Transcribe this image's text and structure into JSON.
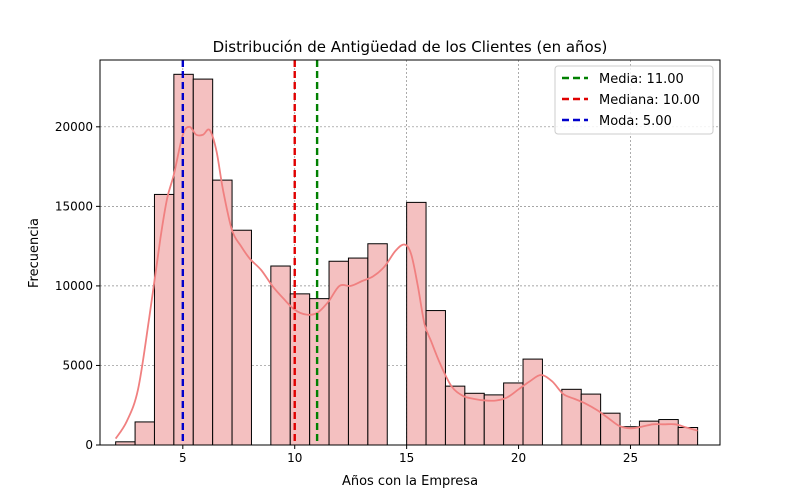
{
  "chart_data": {
    "type": "histogram",
    "title": "Distribución de Antigüedad de los Clientes (en años)",
    "xlabel": "Años con la Empresa",
    "ylabel": "Frecuencia",
    "xlim": [
      1.3,
      29.0
    ],
    "ylim": [
      0,
      24200
    ],
    "xticks": [
      5,
      10,
      15,
      20,
      25
    ],
    "yticks": [
      0,
      5000,
      10000,
      15000,
      20000
    ],
    "grid": true,
    "bin_width": 0.867,
    "bins": [
      {
        "x0": 2.0,
        "value": 200
      },
      {
        "x0": 2.867,
        "value": 1450
      },
      {
        "x0": 3.733,
        "value": 15750
      },
      {
        "x0": 4.6,
        "value": 23300
      },
      {
        "x0": 5.467,
        "value": 23000
      },
      {
        "x0": 6.333,
        "value": 16650
      },
      {
        "x0": 7.2,
        "value": 13500
      },
      {
        "x0": 8.067,
        "value": 0
      },
      {
        "x0": 8.933,
        "value": 11250
      },
      {
        "x0": 9.8,
        "value": 9500
      },
      {
        "x0": 10.667,
        "value": 9200
      },
      {
        "x0": 11.533,
        "value": 11550
      },
      {
        "x0": 12.4,
        "value": 11750
      },
      {
        "x0": 13.267,
        "value": 12650
      },
      {
        "x0": 14.133,
        "value": 0
      },
      {
        "x0": 15.0,
        "value": 15250
      },
      {
        "x0": 15.867,
        "value": 8450
      },
      {
        "x0": 16.733,
        "value": 3700
      },
      {
        "x0": 17.6,
        "value": 3250
      },
      {
        "x0": 18.467,
        "value": 3150
      },
      {
        "x0": 19.333,
        "value": 3900
      },
      {
        "x0": 20.2,
        "value": 5400
      },
      {
        "x0": 21.067,
        "value": 0
      },
      {
        "x0": 21.933,
        "value": 3500
      },
      {
        "x0": 22.8,
        "value": 3200
      },
      {
        "x0": 23.667,
        "value": 2000
      },
      {
        "x0": 24.533,
        "value": 1150
      },
      {
        "x0": 25.4,
        "value": 1500
      },
      {
        "x0": 26.267,
        "value": 1600
      },
      {
        "x0": 27.133,
        "value": 1100
      }
    ],
    "kde": {
      "x": [
        2.0,
        2.5,
        3.0,
        3.5,
        4.0,
        4.3,
        4.6,
        5.0,
        5.3,
        5.6,
        5.9,
        6.2,
        6.5,
        6.8,
        7.2,
        7.6,
        8.0,
        8.5,
        9.0,
        9.5,
        10.0,
        10.5,
        11.0,
        11.5,
        12.0,
        12.5,
        13.0,
        13.5,
        14.0,
        14.5,
        14.9,
        15.2,
        15.5,
        15.8,
        16.1,
        16.5,
        17.0,
        17.5,
        18.0,
        18.5,
        19.0,
        19.5,
        20.0,
        20.5,
        21.0,
        21.5,
        22.0,
        22.5,
        23.0,
        23.5,
        24.0,
        24.5,
        25.0,
        25.5,
        26.0,
        26.5,
        27.0,
        27.5,
        28.0
      ],
      "y": [
        400,
        1500,
        3500,
        8000,
        13000,
        15500,
        17000,
        19500,
        20000,
        19500,
        19500,
        19800,
        18500,
        16000,
        13500,
        12500,
        11700,
        11000,
        10000,
        9200,
        8500,
        8200,
        8300,
        9000,
        10000,
        10000,
        10300,
        10600,
        11200,
        12200,
        12600,
        12000,
        10000,
        7600,
        6500,
        5100,
        3700,
        3100,
        2900,
        2800,
        2800,
        3000,
        3500,
        4000,
        4400,
        4000,
        3200,
        2900,
        2600,
        2200,
        1700,
        1200,
        1050,
        1150,
        1300,
        1300,
        1300,
        1100,
        900
      ],
      "color": "#f08080"
    },
    "bar_fill": "#f4c0c0",
    "bar_edge": "#000000",
    "lines": [
      {
        "label": "Media: 11.00",
        "x": 11.0,
        "color": "#008000"
      },
      {
        "label": "Mediana: 10.00",
        "x": 10.0,
        "color": "#e00000"
      },
      {
        "label": "Moda: 5.00",
        "x": 5.0,
        "color": "#0000cc"
      }
    ],
    "legend": "top-right"
  }
}
